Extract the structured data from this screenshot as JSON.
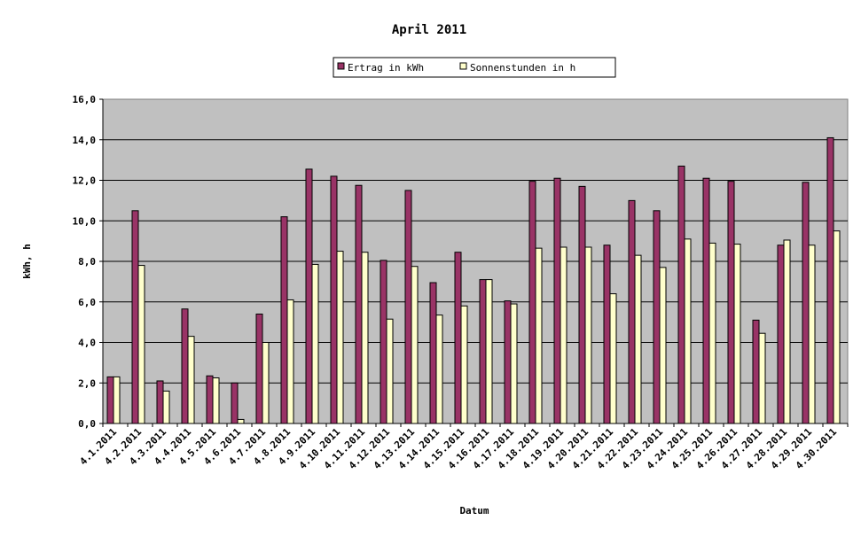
{
  "chart_data": {
    "type": "bar",
    "title": "April 2011",
    "xlabel": "Datum",
    "ylabel": "kWh, h",
    "ylim": [
      0,
      16
    ],
    "yticks": [
      "0,0",
      "2,0",
      "4,0",
      "6,0",
      "8,0",
      "10,0",
      "12,0",
      "14,0",
      "16,0"
    ],
    "grid": true,
    "legend_position": "top-center",
    "categories": [
      "4.1.2011",
      "4.2.2011",
      "4.3.2011",
      "4.4.2011",
      "4.5.2011",
      "4.6.2011",
      "4.7.2011",
      "4.8.2011",
      "4.9.2011",
      "4.10.2011",
      "4.11.2011",
      "4.12.2011",
      "4.13.2011",
      "4.14.2011",
      "4.15.2011",
      "4.16.2011",
      "4.17.2011",
      "4.18.2011",
      "4.19.2011",
      "4.20.2011",
      "4.21.2011",
      "4.22.2011",
      "4.23.2011",
      "4.24.2011",
      "4.25.2011",
      "4.26.2011",
      "4.27.2011",
      "4.28.2011",
      "4.29.2011",
      "4.30.2011"
    ],
    "series": [
      {
        "name": "Ertrag in kWh",
        "color": "#993366",
        "values": [
          2.3,
          10.5,
          2.1,
          5.65,
          2.35,
          2.0,
          5.4,
          10.2,
          12.55,
          12.2,
          11.75,
          8.05,
          11.5,
          6.95,
          8.45,
          7.1,
          6.05,
          11.95,
          12.1,
          11.7,
          8.8,
          11.0,
          10.5,
          12.7,
          12.1,
          11.95,
          5.1,
          8.8,
          11.9,
          14.1
        ]
      },
      {
        "name": "Sonnenstunden in h",
        "color": "#ffffcc",
        "values": [
          2.3,
          7.8,
          1.6,
          4.3,
          2.25,
          0.2,
          4.0,
          6.1,
          7.85,
          8.5,
          8.45,
          5.15,
          7.75,
          5.35,
          5.8,
          7.1,
          5.9,
          8.65,
          8.7,
          8.7,
          6.4,
          8.3,
          7.7,
          9.1,
          8.9,
          8.85,
          4.45,
          9.05,
          8.8,
          9.5
        ]
      }
    ]
  }
}
